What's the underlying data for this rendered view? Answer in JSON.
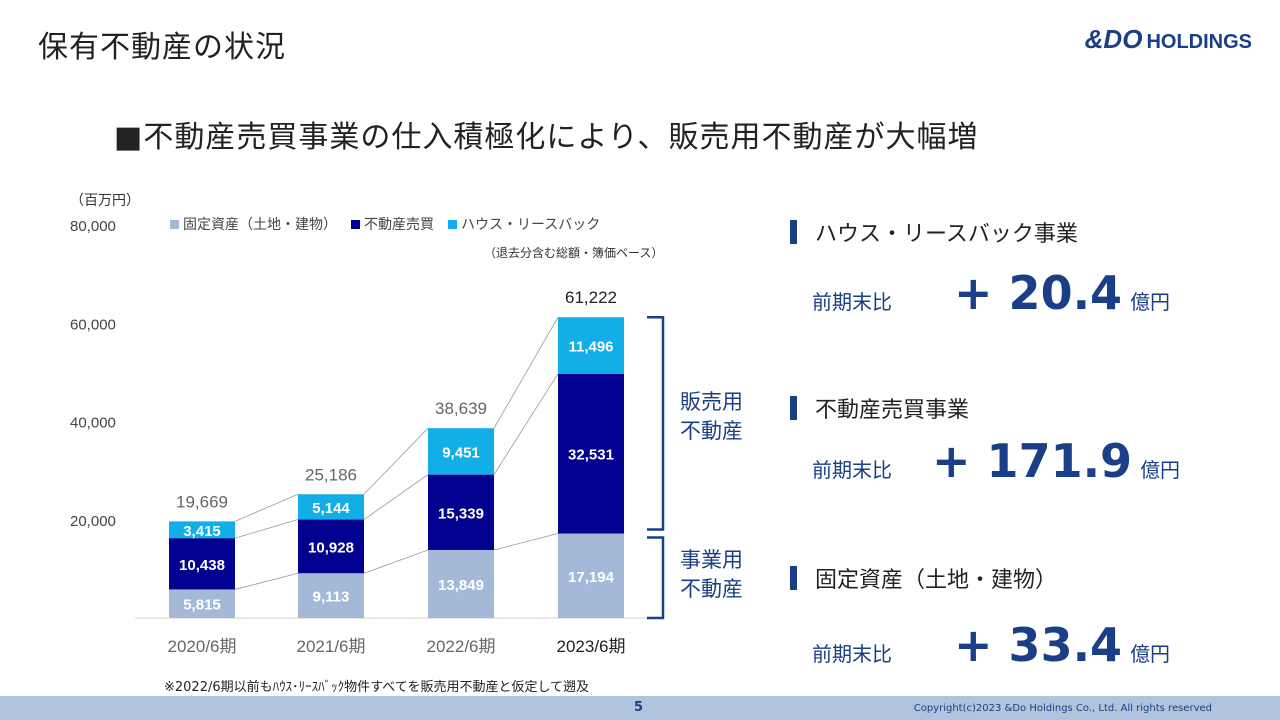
{
  "header": {
    "title": "保有不動産の状況",
    "logo_amp": "&DO",
    "logo_text": "HOLDINGS"
  },
  "headline": "■不動産売買事業の仕入積極化により、販売用不動産が大幅増",
  "chart_unit": "（百万円）",
  "legend_note": "（退去分含む総額・簿価ベース）",
  "footnote": "※2022/6期以前もﾊｳｽ･ﾘｰｽﾊﾞｯｸ物件すべてを販売用不動産と仮定して遡及",
  "bracket": {
    "upper": "販売用 不動産",
    "lower": "事業用 不動産"
  },
  "segments": [
    {
      "name": "ハウス・リースバック事業",
      "label": "前期末比",
      "value": "+ 20.4",
      "unit": "億円"
    },
    {
      "name": "不動産売買事業",
      "label": "前期末比",
      "value": "+ 171.9",
      "unit": "億円"
    },
    {
      "name": "固定資産（土地・建物）",
      "label": "前期末比",
      "value": "+ 33.4",
      "unit": "億円"
    }
  ],
  "footer": {
    "page": "5",
    "copyright": "Copyright(c)2023 &Do Holdings Co., Ltd. All rights reserved"
  },
  "colors": {
    "fixed": "#a4b9d8",
    "trading": "#02018f",
    "leaseback": "#12aee7",
    "accent": "#1a3f86",
    "footer": "#b0c4de"
  },
  "chart_data": {
    "type": "bar",
    "stacked": true,
    "categories": [
      "2020/6期",
      "2021/6期",
      "2022/6期",
      "2023/6期"
    ],
    "series": [
      {
        "name": "固定資産（土地・建物）",
        "values": [
          5815,
          9113,
          13849,
          17194
        ],
        "color": "#a4b9d8"
      },
      {
        "name": "不動産売買",
        "values": [
          10438,
          10928,
          15339,
          32531
        ],
        "color": "#02018f"
      },
      {
        "name": "ハウス・リースバック",
        "values": [
          3415,
          5144,
          9451,
          11496
        ],
        "color": "#12aee7"
      }
    ],
    "totals": [
      19669,
      25186,
      38639,
      61222
    ],
    "ylim": [
      0,
      80000
    ],
    "yticks": [
      "20,000",
      "40,000",
      "60,000",
      "80,000"
    ],
    "ylabel": "（百万円）",
    "legend": "top"
  }
}
